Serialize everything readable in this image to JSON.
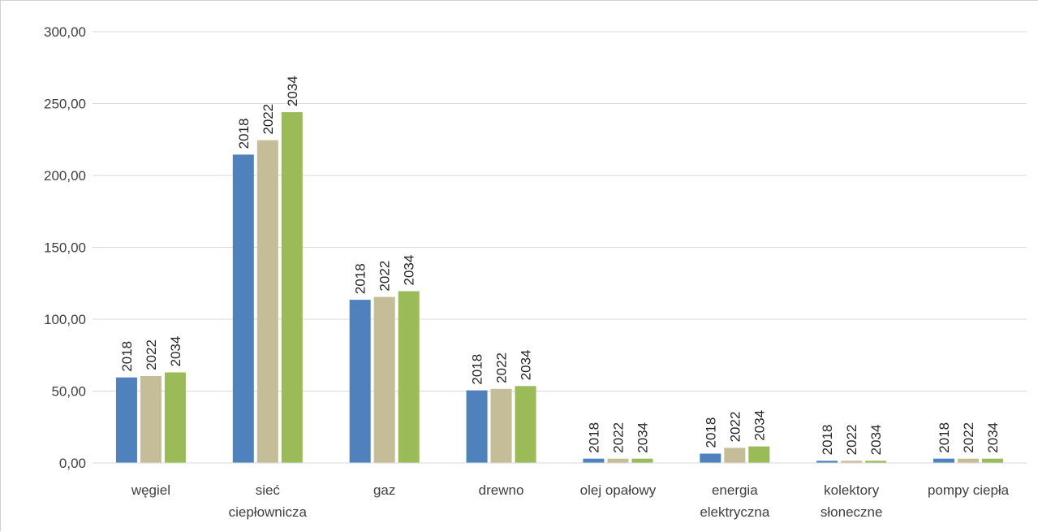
{
  "chart_data": {
    "type": "bar",
    "categories": [
      [
        "węgiel"
      ],
      [
        "sieć",
        "ciepłownicza"
      ],
      [
        "gaz"
      ],
      [
        "drewno"
      ],
      [
        "olej opałowy"
      ],
      [
        "energia",
        "elektryczna"
      ],
      [
        "kolektory",
        "słoneczne"
      ],
      [
        "pompy ciepła"
      ]
    ],
    "series": [
      {
        "name": "2018",
        "color": "#4f81bd",
        "values": [
          59.5,
          214.5,
          113.5,
          50.5,
          3.0,
          6.5,
          1.5,
          3.0
        ]
      },
      {
        "name": "2022",
        "color": "#c4bd97",
        "values": [
          60.5,
          224.5,
          115.5,
          51.5,
          3.0,
          10.5,
          1.5,
          3.0
        ]
      },
      {
        "name": "2034",
        "color": "#9bbb59",
        "values": [
          63.0,
          244.0,
          119.5,
          53.5,
          3.0,
          11.5,
          1.5,
          3.0
        ]
      }
    ],
    "ylim": [
      0,
      300
    ],
    "yticks": [
      "0,00",
      "50,00",
      "100,00",
      "150,00",
      "200,00",
      "250,00",
      "300,00"
    ],
    "ytick_values": [
      0,
      50,
      100,
      150,
      200,
      250,
      300
    ],
    "grid": true,
    "data_labels": "series-name-rotated"
  }
}
